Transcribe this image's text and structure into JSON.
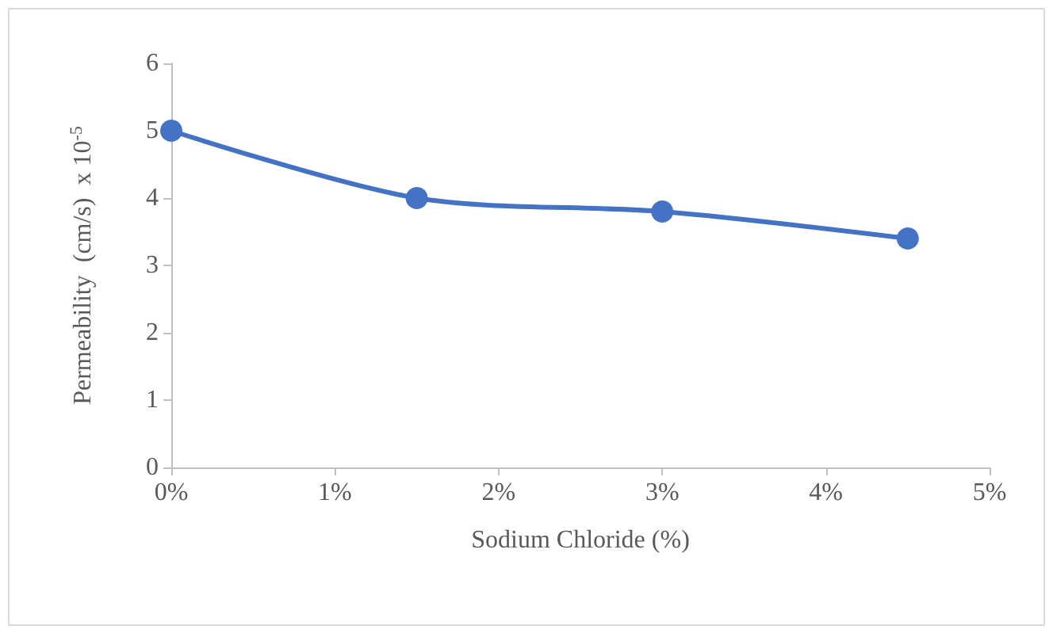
{
  "chart_data": {
    "type": "line",
    "xlabel": "Sodium Chloride (%)",
    "ylabel": "Permeability  (cm/s)  x 10$^{-5}$",
    "x": [
      0,
      1.5,
      3,
      4.5
    ],
    "series": [
      {
        "color": "#4472c4",
        "values": [
          5,
          4,
          3.8,
          3.4
        ]
      }
    ],
    "xlim": [
      0,
      5
    ],
    "xticks": [
      {
        "value": 0,
        "label": "0%"
      },
      {
        "value": 1,
        "label": "1%"
      },
      {
        "value": 2,
        "label": "2%"
      },
      {
        "value": 3,
        "label": "3%"
      },
      {
        "value": 4,
        "label": "4%"
      },
      {
        "value": 5,
        "label": "5%"
      }
    ],
    "ylim": [
      0,
      6
    ],
    "yticks": [
      0,
      1,
      2,
      3,
      4,
      5,
      6
    ],
    "marker": "circle",
    "line_style": "solid"
  }
}
